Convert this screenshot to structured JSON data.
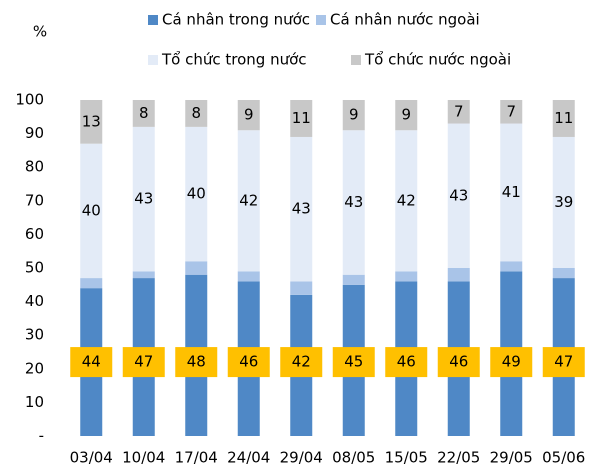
{
  "chart_data": {
    "type": "stacked-bar",
    "unit": "%",
    "categories": [
      "03/04",
      "10/04",
      "17/04",
      "24/04",
      "29/04",
      "08/05",
      "15/05",
      "22/05",
      "29/05",
      "05/06"
    ],
    "series": [
      {
        "name": "Cá nhân trong nước",
        "color": "#4f88c6",
        "values": [
          44,
          47,
          48,
          46,
          42,
          45,
          46,
          46,
          49,
          47
        ]
      },
      {
        "name": "Cá nhân nước ngoài",
        "color": "#a9c4e8",
        "values": [
          3,
          2,
          4,
          3,
          4,
          3,
          3,
          4,
          3,
          3
        ]
      },
      {
        "name": "Tổ chức trong nước",
        "color": "#e3ebf7",
        "values": [
          40,
          43,
          40,
          42,
          43,
          43,
          42,
          43,
          41,
          39
        ]
      },
      {
        "name": "Tổ chức nước ngoài",
        "color": "#c8c8c8",
        "values": [
          13,
          8,
          8,
          9,
          11,
          9,
          9,
          7,
          7,
          11
        ]
      }
    ],
    "label_box_color": "#ffc000",
    "ylim": [
      0,
      100
    ],
    "yticks": [
      {
        "value": 0,
        "label": "-"
      },
      10,
      20,
      30,
      40,
      50,
      60,
      70,
      80,
      90,
      100
    ]
  }
}
